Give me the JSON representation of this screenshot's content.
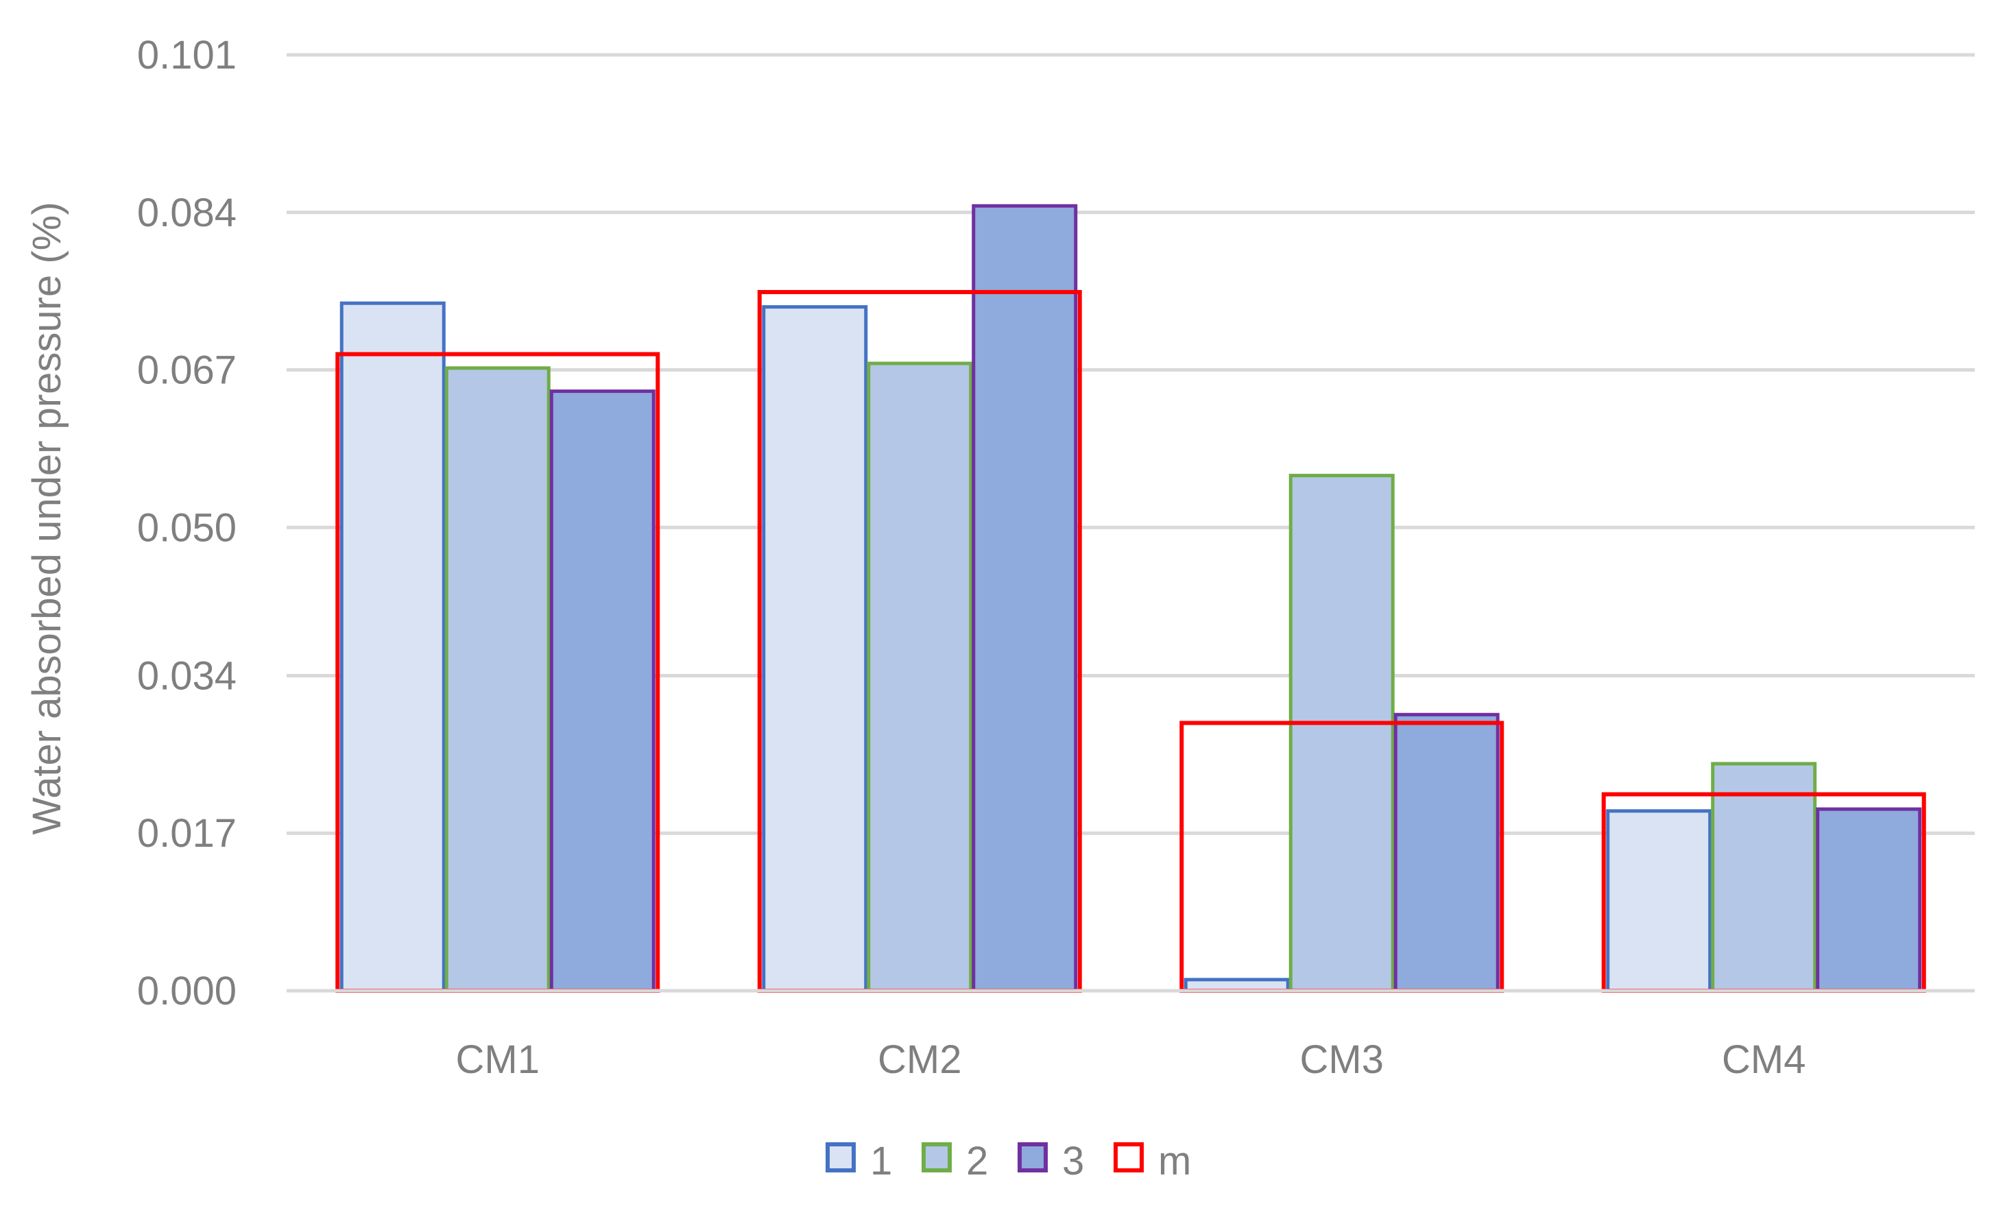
{
  "chart_data": {
    "type": "bar",
    "title": "",
    "xlabel": "",
    "ylabel": "Water absorbed under pressure (%)",
    "categories": [
      "CM1",
      "CM2",
      "CM3",
      "CM4"
    ],
    "y_ticks": [
      "0.000",
      "0.017",
      "0.034",
      "0.050",
      "0.067",
      "0.084",
      "0.101"
    ],
    "ylim": [
      0,
      0.101
    ],
    "grid": true,
    "legend_position": "bottom",
    "series": [
      {
        "name": "1",
        "values": [
          0.0742,
          0.0738,
          0.0012,
          0.0194
        ],
        "fill": "#dae3f3",
        "stroke": "#4472c4"
      },
      {
        "name": "2",
        "values": [
          0.0672,
          0.0677,
          0.0556,
          0.0245
        ],
        "fill": "#b4c7e7",
        "stroke": "#70ad47"
      },
      {
        "name": "3",
        "values": [
          0.0647,
          0.0847,
          0.0298,
          0.0196
        ],
        "fill": "#8faadc",
        "stroke": "#7030a0"
      },
      {
        "name": "m",
        "values": [
          0.0687,
          0.0754,
          0.0289,
          0.0212
        ],
        "fill": "none",
        "stroke": "#ff0000"
      }
    ]
  }
}
